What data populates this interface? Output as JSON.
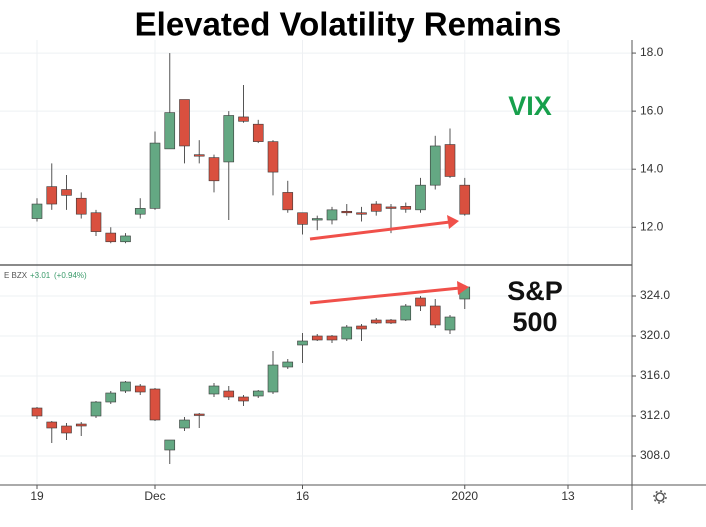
{
  "chart_data": [
    {
      "type": "candlestick",
      "title": "Elevated Volatility Remains",
      "label": "VIX",
      "label_color": "#17a04c",
      "up_color": "#64a883",
      "down_color": "#d9503f",
      "grid": true,
      "open": [
        12.3,
        13.4,
        13.3,
        13.0,
        12.5,
        11.8,
        11.5,
        12.45,
        12.65,
        14.7,
        16.4,
        14.5,
        14.4,
        14.25,
        15.8,
        15.55,
        14.95,
        13.2,
        12.5,
        12.25,
        12.25,
        12.55,
        12.5,
        12.8,
        12.7,
        12.72,
        12.6,
        13.45,
        14.85,
        13.45,
        null,
        null,
        null,
        null,
        null,
        null,
        null
      ],
      "high": [
        13.0,
        14.2,
        13.8,
        13.2,
        12.6,
        12.0,
        11.8,
        13.0,
        15.3,
        18.0,
        16.4,
        15.0,
        14.5,
        16.0,
        16.9,
        15.7,
        15.0,
        13.6,
        12.5,
        12.4,
        12.7,
        12.8,
        12.7,
        12.9,
        12.8,
        12.85,
        13.7,
        15.15,
        15.4,
        13.7,
        null,
        null,
        null,
        null,
        null,
        null,
        null
      ],
      "low": [
        12.2,
        12.6,
        12.6,
        12.3,
        11.7,
        11.45,
        11.45,
        12.3,
        12.6,
        14.7,
        14.2,
        14.2,
        13.2,
        12.25,
        15.6,
        14.9,
        13.1,
        12.5,
        11.75,
        11.9,
        12.1,
        12.4,
        12.2,
        12.4,
        11.8,
        12.5,
        12.5,
        13.3,
        13.7,
        12.4,
        null,
        null,
        null,
        null,
        null,
        null,
        null
      ],
      "close": [
        12.8,
        12.8,
        13.1,
        12.45,
        11.85,
        11.5,
        11.7,
        12.65,
        14.9,
        15.95,
        14.8,
        14.45,
        13.6,
        15.85,
        15.65,
        14.95,
        13.9,
        12.6,
        12.1,
        12.3,
        12.6,
        12.5,
        12.45,
        12.55,
        12.65,
        12.62,
        13.45,
        14.8,
        13.75,
        12.45,
        null,
        null,
        null,
        null,
        null,
        null,
        null
      ],
      "ylim": [
        10.7,
        18.45
      ],
      "yticks": [
        {
          "value": 12,
          "label": "12.0"
        },
        {
          "value": 14,
          "label": "14.0"
        },
        {
          "value": 16,
          "label": "16.0"
        },
        {
          "value": 18,
          "label": "18.0"
        }
      ]
    },
    {
      "type": "candlestick",
      "label_lines": [
        "S&P",
        "500"
      ],
      "label_color": "#111111",
      "legend": "E BZX",
      "change": "+3.01",
      "change_pct": "(+0.94%)",
      "up_color": "#64a883",
      "down_color": "#d9503f",
      "grid": true,
      "categories": [
        "19",
        null,
        null,
        null,
        null,
        null,
        null,
        null,
        "Dec",
        null,
        null,
        null,
        null,
        null,
        null,
        null,
        null,
        null,
        "16",
        null,
        null,
        null,
        null,
        null,
        null,
        null,
        null,
        null,
        null,
        "2020",
        null,
        null,
        null,
        null,
        null,
        null,
        "13"
      ],
      "open": [
        312.8,
        311.4,
        311.0,
        311.2,
        312.0,
        313.4,
        314.5,
        315.0,
        314.7,
        308.6,
        310.8,
        312.2,
        314.2,
        314.5,
        313.9,
        314.0,
        314.4,
        316.9,
        319.1,
        320.0,
        320.0,
        319.7,
        321.0,
        321.6,
        321.6,
        321.6,
        323.8,
        323.0,
        320.6,
        323.7,
        null,
        null,
        null,
        null,
        null,
        null,
        null
      ],
      "high": [
        312.9,
        311.5,
        311.3,
        311.4,
        313.5,
        314.5,
        315.5,
        315.2,
        314.8,
        309.6,
        311.9,
        312.3,
        315.3,
        315.0,
        314.1,
        314.6,
        318.5,
        317.7,
        320.3,
        320.2,
        320.1,
        321.1,
        321.2,
        321.8,
        321.7,
        323.2,
        324.0,
        323.7,
        322.1,
        325.1,
        null,
        null,
        null,
        null,
        null,
        null,
        null
      ],
      "low": [
        311.7,
        309.3,
        309.6,
        310.0,
        311.8,
        313.2,
        314.3,
        314.1,
        311.5,
        307.2,
        310.5,
        310.8,
        313.9,
        313.6,
        313.0,
        313.8,
        314.2,
        316.7,
        317.3,
        319.5,
        319.3,
        319.5,
        319.5,
        321.2,
        321.2,
        321.5,
        322.5,
        320.8,
        320.2,
        322.7,
        null,
        null,
        null,
        null,
        null,
        null,
        null
      ],
      "close": [
        312.0,
        310.8,
        310.3,
        311.0,
        313.4,
        314.3,
        315.4,
        314.4,
        311.6,
        309.6,
        311.6,
        312.1,
        315.0,
        313.9,
        313.5,
        314.5,
        317.1,
        317.4,
        319.5,
        319.6,
        319.6,
        320.9,
        320.7,
        321.3,
        321.3,
        323.0,
        323.0,
        321.1,
        321.9,
        324.9,
        null,
        null,
        null,
        null,
        null,
        null,
        null
      ],
      "ylim": [
        305.1,
        327.1
      ],
      "yticks": [
        {
          "value": 308,
          "label": "308.0"
        },
        {
          "value": 312,
          "label": "312.0"
        },
        {
          "value": 316,
          "label": "316.0"
        },
        {
          "value": 320,
          "label": "320.0"
        },
        {
          "value": 324,
          "label": "324.0"
        }
      ]
    }
  ]
}
